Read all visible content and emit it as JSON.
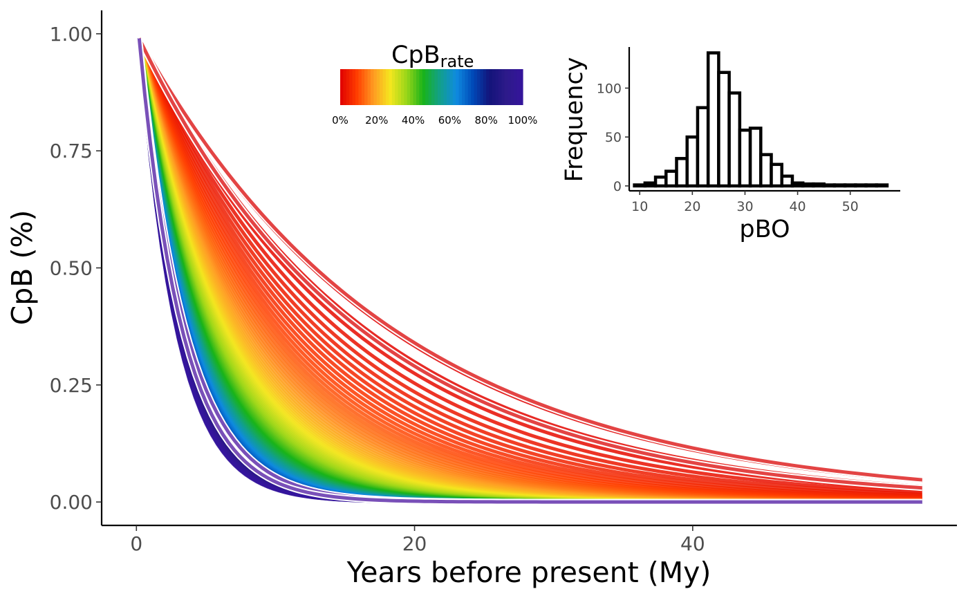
{
  "chart_data": [
    {
      "type": "line",
      "description_role": "main",
      "xlabel": "Years before present (My)",
      "ylabel": "CpB (%)",
      "xlim": [
        -2.5,
        59
      ],
      "ylim": [
        -0.05,
        1.05
      ],
      "x_ticks": [
        0,
        20,
        40
      ],
      "x_tick_labels": [
        "0",
        "20",
        "40"
      ],
      "y_ticks": [
        0,
        0.25,
        0.5,
        0.75,
        1.0
      ],
      "y_tick_labels": [
        "0.00",
        "0.25",
        "0.50",
        "0.75",
        "1.00"
      ],
      "x_start": 0.2,
      "x_end": 56.5,
      "curve_start_value": 0.99,
      "rate_range": [
        0.055,
        0.37
      ],
      "curve_count": 120,
      "highlight_curves": [
        {
          "rate": 0.054,
          "color": "#e03030"
        },
        {
          "rate": 0.062,
          "color": "#e03030"
        },
        {
          "rate": 0.295,
          "color": "#6a3db0"
        },
        {
          "rate": 0.32,
          "color": "#6a3db0"
        }
      ],
      "grid": false,
      "legend": {
        "title_main": "CpB",
        "title_sub": "rate",
        "placement": "top-center",
        "ticks": [
          "0%",
          "20%",
          "40%",
          "60%",
          "80%",
          "100%"
        ],
        "colors": [
          "#e00000",
          "#ff3d00",
          "#ff9a22",
          "#f5e61f",
          "#9ad619",
          "#19b319",
          "#12a08a",
          "#0f8be0",
          "#0049b8",
          "#13137a",
          "#2d1a8a",
          "#35159c"
        ]
      }
    },
    {
      "type": "bar",
      "description_role": "inset-histogram",
      "xlabel": "pBO",
      "ylabel": "Frequency",
      "xlim": [
        8,
        59.5
      ],
      "ylim": [
        -5,
        142
      ],
      "x_ticks": [
        10,
        20,
        30,
        40,
        50
      ],
      "x_tick_labels": [
        "10",
        "20",
        "30",
        "40",
        "50"
      ],
      "y_ticks": [
        0,
        50,
        100
      ],
      "y_tick_labels": [
        "0",
        "50",
        "100"
      ],
      "bin_width": 2,
      "bin_starts": [
        10,
        12,
        14,
        16,
        18,
        20,
        22,
        24,
        26,
        28,
        30,
        32,
        34,
        36,
        38,
        40,
        42,
        44,
        46,
        48,
        50,
        52,
        54,
        56
      ],
      "values": [
        1,
        3,
        9,
        15,
        28,
        50,
        80,
        136,
        116,
        95,
        57,
        59,
        32,
        22,
        10,
        3,
        2,
        2,
        1,
        1,
        1,
        1,
        1,
        1
      ]
    }
  ]
}
